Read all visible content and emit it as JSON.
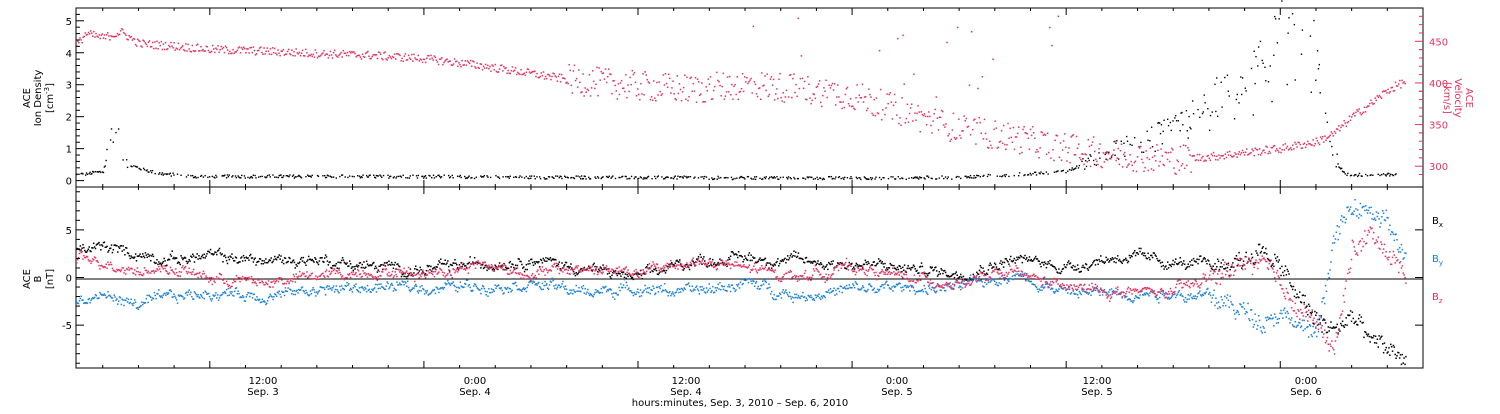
{
  "colors": {
    "axis": "#000000",
    "density": "#000000",
    "velocity": "#e8325f",
    "bx": "#000000",
    "by": "#1a82d8",
    "bz": "#e8325f"
  },
  "xaxis": {
    "tick_labels": [
      {
        "time": "12:00",
        "date": "Sep. 3"
      },
      {
        "time": "0:00",
        "date": "Sep. 4"
      },
      {
        "time": "12:00",
        "date": "Sep. 4"
      },
      {
        "time": "0:00",
        "date": "Sep. 5"
      },
      {
        "time": "12:00",
        "date": "Sep. 5"
      },
      {
        "time": "0:00",
        "date": "Sep. 6"
      }
    ],
    "label": "hours:minutes, Sep.  3, 2010 – Sep.  6, 2010"
  },
  "chart_data": [
    {
      "type": "scatter",
      "panel": "top",
      "ylabel_left": [
        "ACE",
        "Ion Density"
      ],
      "ylabel_left_unit": "[cm",
      "ylabel_left_unit_sup": "-3",
      "ylabel_left_unit_end": "]",
      "ylabel_right": [
        "ACE",
        "Velocity"
      ],
      "ylabel_right_unit": "[km/s]",
      "x_range_hours": [
        -7.5,
        68
      ],
      "ylim_left": [
        -0.2,
        5.4
      ],
      "ylim_right": [
        275,
        490
      ],
      "left_ticks": [
        "0",
        "1",
        "2",
        "3",
        "4",
        "5"
      ],
      "right_ticks": [
        "300",
        "350",
        "400",
        "450"
      ],
      "series": [
        {
          "axis": "left",
          "x_hours": [
            -7.5,
            -6,
            -5.5,
            -4.5,
            -3,
            -1,
            0,
            6,
            12,
            18,
            24,
            30,
            36,
            42,
            48,
            50,
            52,
            54,
            56,
            58,
            59,
            60,
            61,
            62,
            62.5,
            63,
            63.5,
            64,
            66,
            68
          ],
          "y": [
            0.2,
            0.3,
            1.6,
            0.5,
            0.25,
            0.15,
            0.15,
            0.15,
            0.15,
            0.12,
            0.12,
            0.1,
            0.1,
            0.12,
            0.3,
            0.8,
            1.2,
            1.5,
            2.3,
            3.0,
            3.3,
            4.2,
            5.0,
            3.5,
            2.0,
            0.8,
            0.25,
            0.2,
            0.2,
            0.2
          ]
        },
        {
          "axis": "right",
          "x_hours": [
            -7.5,
            -7,
            -6,
            -5,
            -4,
            -2,
            0,
            3,
            6,
            9,
            12,
            15,
            18,
            20,
            22,
            24,
            27,
            30,
            33,
            36,
            38,
            40,
            42,
            45,
            48,
            51,
            54,
            56,
            58,
            60,
            62,
            63,
            64,
            65,
            66,
            67
          ],
          "y": [
            445,
            460,
            455,
            462,
            448,
            445,
            441,
            439,
            436,
            434,
            430,
            422,
            412,
            405,
            401,
            397,
            393,
            399,
            394,
            386,
            372,
            358,
            345,
            335,
            322,
            314,
            309,
            312,
            317,
            322,
            330,
            340,
            360,
            375,
            392,
            403
          ]
        }
      ]
    },
    {
      "type": "scatter",
      "panel": "bottom",
      "ylabel_left": [
        "ACE",
        "B"
      ],
      "ylabel_left_unit": "[nT]",
      "x_range_hours": [
        -7.5,
        68
      ],
      "ylim": [
        -9.5,
        9.5
      ],
      "left_ticks": [
        "-5",
        "0",
        "5"
      ],
      "legend": [
        "B",
        "B",
        "B"
      ],
      "legend_subs": [
        "x",
        "y",
        "z"
      ],
      "series": [
        {
          "name": "Bx",
          "x_hours": [
            -7.5,
            -6,
            -4,
            -2,
            0,
            3,
            6,
            9,
            12,
            15,
            18,
            21,
            24,
            27,
            30,
            33,
            36,
            39,
            42,
            45,
            48,
            51,
            54,
            56,
            58,
            59,
            60,
            61,
            62,
            63,
            64,
            65,
            66,
            67
          ],
          "y": [
            2.8,
            3.2,
            2.5,
            2.0,
            2.3,
            1.8,
            2.0,
            1.2,
            0.8,
            1.5,
            2.0,
            1.0,
            0.0,
            1.8,
            2.2,
            1.8,
            1.5,
            1.0,
            0.5,
            2.0,
            1.2,
            2.3,
            1.6,
            1.2,
            2.0,
            3.0,
            1.0,
            -2.0,
            -4.5,
            -5.5,
            -4.0,
            -6.5,
            -7.5,
            -8.5
          ]
        },
        {
          "name": "By",
          "x_hours": [
            -7.5,
            -6,
            -4,
            -2,
            0,
            3,
            6,
            9,
            12,
            15,
            18,
            21,
            24,
            27,
            30,
            33,
            36,
            39,
            42,
            45,
            48,
            51,
            54,
            56,
            58,
            59,
            60,
            61,
            62,
            63,
            64,
            65,
            66,
            67
          ],
          "y": [
            -2.5,
            -1.8,
            -2.8,
            -2.0,
            -1.5,
            -1.8,
            -1.2,
            -1.0,
            -1.0,
            -0.8,
            -0.5,
            -1.5,
            -1.0,
            -1.5,
            -0.5,
            -1.8,
            -1.2,
            -1.0,
            -1.0,
            0.5,
            -1.5,
            -1.5,
            -1.5,
            -2.0,
            -3.5,
            -4.5,
            -3.5,
            -5.0,
            -6.0,
            4.0,
            7.5,
            7.0,
            5.5,
            2.0
          ]
        },
        {
          "name": "Bz",
          "x_hours": [
            -7.5,
            -6,
            -4,
            -2,
            0,
            3,
            6,
            9,
            12,
            15,
            18,
            21,
            24,
            27,
            30,
            33,
            36,
            39,
            42,
            45,
            48,
            51,
            54,
            56,
            58,
            59,
            60,
            61,
            62,
            63,
            64,
            65,
            66,
            67
          ],
          "y": [
            2.0,
            1.8,
            0.8,
            1.0,
            0.0,
            -0.5,
            0.2,
            0.8,
            0.5,
            1.5,
            0.5,
            1.0,
            0.5,
            1.8,
            1.0,
            0.2,
            1.2,
            0.0,
            -0.5,
            0.5,
            -1.0,
            -1.5,
            -1.5,
            0.0,
            1.5,
            1.8,
            -1.0,
            -3.0,
            -4.5,
            -8.0,
            3.0,
            4.5,
            3.0,
            0.0
          ]
        }
      ]
    }
  ]
}
